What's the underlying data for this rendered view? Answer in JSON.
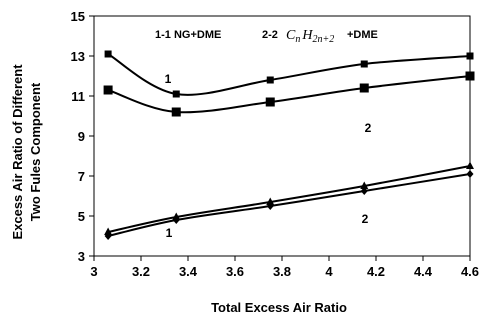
{
  "chart_data": {
    "type": "line",
    "xlabel": "Total Excess Air Ratio",
    "ylabel_lines": [
      "Excess Air Ratio of Different",
      "Two Fules Component"
    ],
    "xlim": [
      3.0,
      4.6
    ],
    "ylim": [
      3,
      15
    ],
    "x_ticks": [
      "3",
      "3.2",
      "3.4",
      "3.6",
      "3.8",
      "4",
      "4.2",
      "4.4",
      "4.6"
    ],
    "y_ticks": [
      "3",
      "5",
      "7",
      "9",
      "11",
      "13",
      "15"
    ],
    "grid": false,
    "legend": {
      "item1": "1-1 NG+DME",
      "item2_prefix": "2-2",
      "item2_C": "C",
      "item2_n": "n",
      "item2_H": "H",
      "item2_sub": "2n+2",
      "item2_suffix": "+DME"
    },
    "series": [
      {
        "label": "1",
        "marker": "square",
        "x": [
          3.06,
          3.35,
          3.75,
          4.15,
          4.6
        ],
        "y": [
          13.1,
          11.1,
          11.8,
          12.6,
          13.0
        ]
      },
      {
        "label": "2",
        "marker": "square-large",
        "x": [
          3.06,
          3.35,
          3.75,
          4.15,
          4.6
        ],
        "y": [
          11.3,
          10.2,
          10.7,
          11.4,
          12.0
        ]
      },
      {
        "label": "2",
        "marker": "triangle",
        "x": [
          3.06,
          3.35,
          3.75,
          4.15,
          4.6
        ],
        "y": [
          4.2,
          4.95,
          5.7,
          6.5,
          7.5
        ]
      },
      {
        "label": "1",
        "marker": "diamond",
        "x": [
          3.06,
          3.35,
          3.75,
          4.15,
          4.6
        ],
        "y": [
          4.0,
          4.8,
          5.5,
          6.25,
          7.1
        ]
      }
    ]
  }
}
